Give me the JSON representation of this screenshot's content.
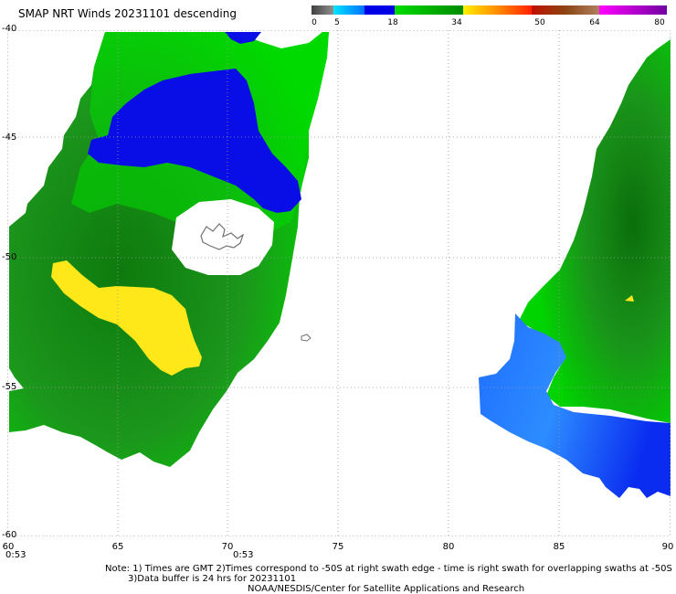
{
  "header": {
    "title": "SMAP NRT Winds  20231101  descending"
  },
  "legend": {
    "labels": [
      "0",
      "5",
      "18",
      "34",
      "50",
      "64",
      "80"
    ],
    "colors": {
      "calm": "#505050",
      "light": "#1e90ff",
      "moderate": "#0000e6",
      "strong": "#00c800",
      "gale": "#ffe600",
      "storm": "#ff0000",
      "hurricane": "#8b4513",
      "extreme": "#c800c8"
    }
  },
  "map": {
    "lat_labels": [
      "-40",
      "-45",
      "-50",
      "-55",
      "-60"
    ],
    "lon_labels": [
      "60",
      "65",
      "70",
      "75",
      "80",
      "85",
      "90"
    ],
    "time_labels": [
      "0:53",
      "0:53"
    ],
    "colors": {
      "swath_green_dark": "#1f8f1f",
      "swath_green_light": "#00dd00",
      "swath_blue": "#0000e6",
      "swath_blue_light": "#1e90ff",
      "swath_yellow": "#ffe600",
      "land": "#808080",
      "grid": "#999999"
    }
  },
  "footer": {
    "note_line1": "Note: 1) Times are GMT 2)Times correspond to -50S at right swath edge - time is right swath for overlapping swaths at -50S",
    "note_line2": "3)Data buffer is 24 hrs for 20231101",
    "credit": "NOAA/NESDIS/Center for Satellite Applications and Research"
  }
}
